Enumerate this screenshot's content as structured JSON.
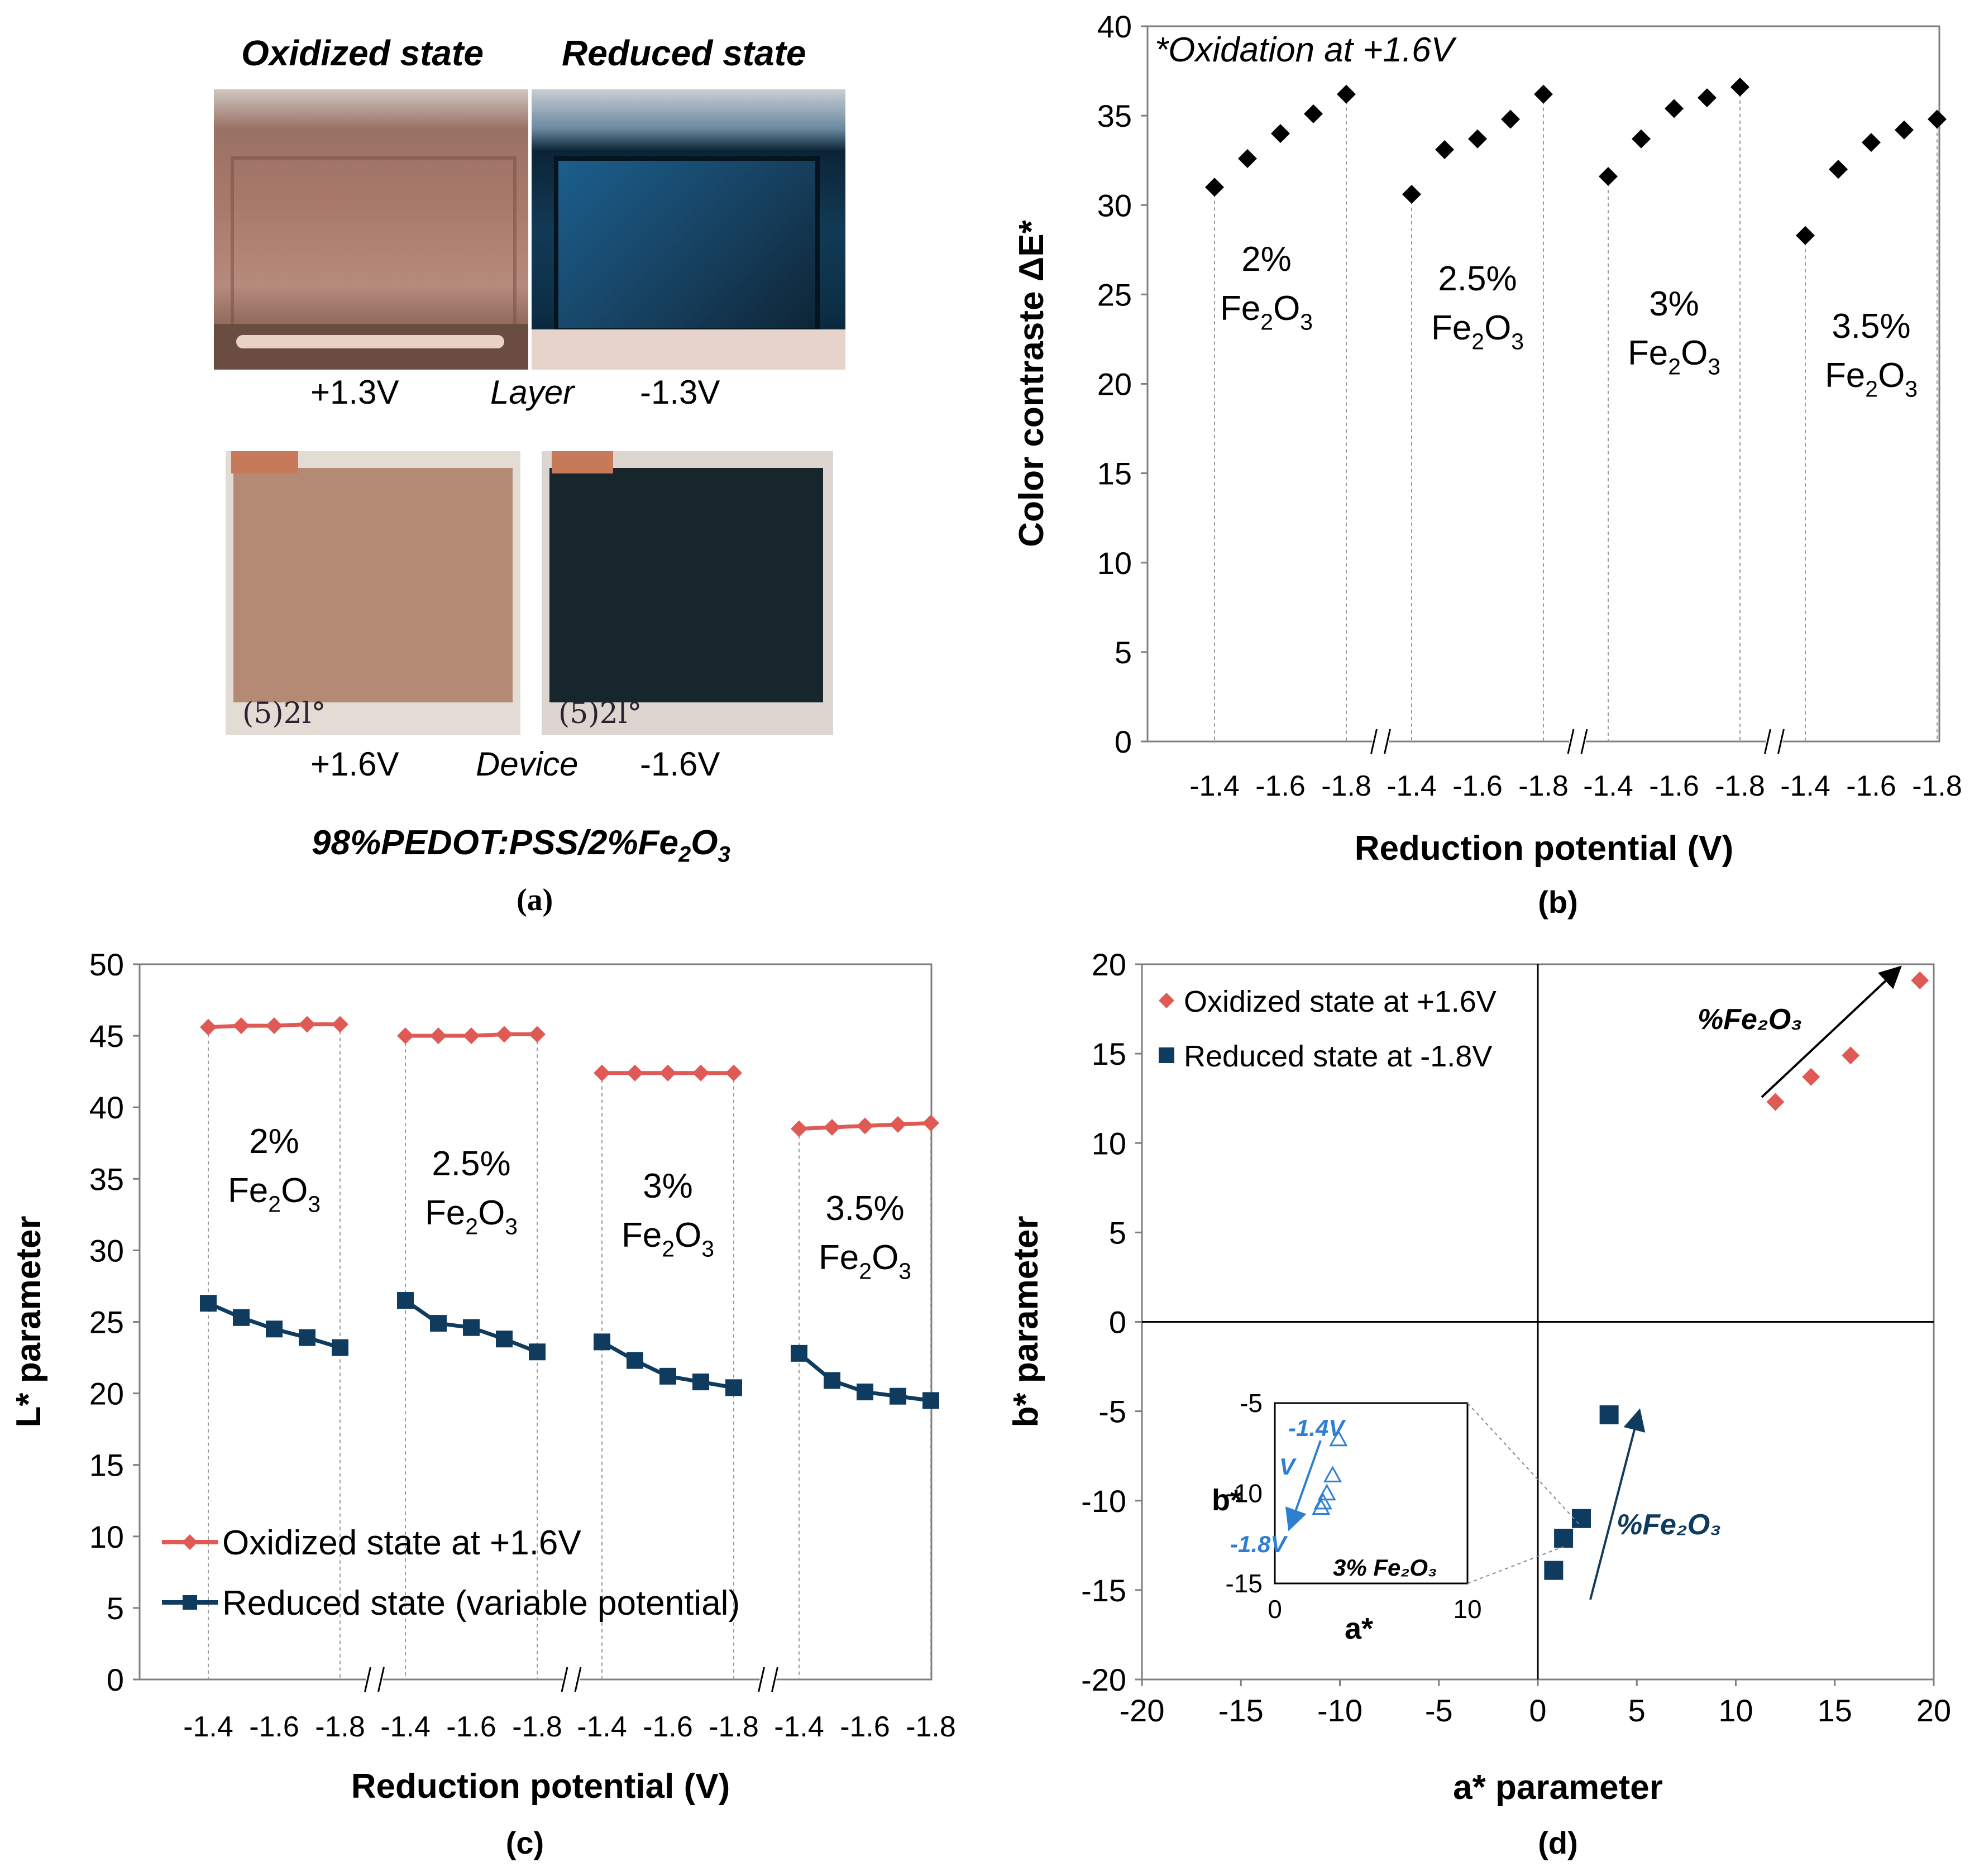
{
  "panel_a": {
    "caption": "(a)",
    "oxidized_title": "Oxidized state",
    "reduced_title": "Reduced state",
    "layer_left_voltage": "+1.3V",
    "layer_label": "Layer",
    "layer_right_voltage": "-1.3V",
    "device_left_voltage": "+1.6V",
    "device_label": "Device",
    "device_right_voltage": "-1.6V",
    "composition_prefix": "98%PEDOT:PSS/2%Fe",
    "composition_sub1": "2",
    "composition_o": "O",
    "composition_sub2": "3",
    "sample_label": "(5)2l°",
    "colors": {
      "oxidized": "#b48a74",
      "reduced": "#16262c",
      "layer_reduced": "#1f5a82",
      "copper": "#c77a5a"
    }
  },
  "chart_data": [
    {
      "id": "b",
      "type": "scatter",
      "caption": "(b)",
      "title": "",
      "annotation": "*Oxidation at +1.6V",
      "xlabel": "Reduction potential (V)",
      "ylabel": "Color contraste ΔE*",
      "ylim": [
        0,
        40
      ],
      "yticks": [
        "0",
        "5",
        "10",
        "15",
        "20",
        "25",
        "30",
        "35",
        "40"
      ],
      "grid": false,
      "marker_color": "#000000",
      "groups": [
        {
          "composition": "2%",
          "formula": [
            "Fe",
            "2",
            "O",
            "3"
          ],
          "x": [
            -1.4,
            -1.5,
            -1.6,
            -1.7,
            -1.8
          ],
          "x_tick_labels": [
            "-1.4",
            "-1.6",
            "-1.8"
          ],
          "values": [
            31.0,
            32.6,
            34.0,
            35.1,
            36.2
          ]
        },
        {
          "composition": "2.5%",
          "formula": [
            "Fe",
            "2",
            "O",
            "3"
          ],
          "x": [
            -1.4,
            -1.5,
            -1.6,
            -1.7,
            -1.8
          ],
          "x_tick_labels": [
            "-1.4",
            "-1.6",
            "-1.8"
          ],
          "values": [
            30.6,
            33.1,
            33.7,
            34.8,
            36.2
          ]
        },
        {
          "composition": "3%",
          "formula": [
            "Fe",
            "2",
            "O",
            "3"
          ],
          "x": [
            -1.4,
            -1.5,
            -1.6,
            -1.7,
            -1.8
          ],
          "x_tick_labels": [
            "-1.4",
            "-1.6",
            "-1.8"
          ],
          "values": [
            31.6,
            33.7,
            35.4,
            36.0,
            36.6
          ]
        },
        {
          "composition": "3.5%",
          "formula": [
            "Fe",
            "2",
            "O",
            "3"
          ],
          "x": [
            -1.4,
            -1.5,
            -1.6,
            -1.7,
            -1.8
          ],
          "x_tick_labels": [
            "-1.4",
            "-1.6",
            "-1.8"
          ],
          "values": [
            28.3,
            32.0,
            33.5,
            34.2,
            34.8
          ]
        }
      ]
    },
    {
      "id": "c",
      "type": "line",
      "caption": "(c)",
      "title": "",
      "xlabel": "Reduction potential (V)",
      "ylabel": "L* parameter",
      "ylim": [
        0,
        50
      ],
      "yticks": [
        "0",
        "5",
        "10",
        "15",
        "20",
        "25",
        "30",
        "35",
        "40",
        "45",
        "50"
      ],
      "grid": false,
      "legend_position": "bottom-left",
      "series": [
        {
          "name": "Oxidized state at +1.6V",
          "color": "#e05a55",
          "marker": "diamond"
        },
        {
          "name": "Reduced state (variable potential)",
          "color": "#0f3c5e",
          "marker": "square"
        }
      ],
      "groups": [
        {
          "composition": "2%",
          "formula": [
            "Fe",
            "2",
            "O",
            "3"
          ],
          "x": [
            -1.4,
            -1.5,
            -1.6,
            -1.7,
            -1.8
          ],
          "x_tick_labels": [
            "-1.4",
            "-1.6",
            "-1.8"
          ],
          "oxidized": [
            45.6,
            45.7,
            45.7,
            45.8,
            45.8
          ],
          "reduced": [
            26.3,
            25.3,
            24.5,
            23.9,
            23.2
          ]
        },
        {
          "composition": "2.5%",
          "formula": [
            "Fe",
            "2",
            "O",
            "3"
          ],
          "x": [
            -1.4,
            -1.5,
            -1.6,
            -1.7,
            -1.8
          ],
          "x_tick_labels": [
            "-1.4",
            "-1.6",
            "-1.8"
          ],
          "oxidized": [
            45.0,
            45.0,
            45.0,
            45.1,
            45.1
          ],
          "reduced": [
            26.5,
            24.9,
            24.6,
            23.8,
            22.9
          ]
        },
        {
          "composition": "3%",
          "formula": [
            "Fe",
            "2",
            "O",
            "3"
          ],
          "x": [
            -1.4,
            -1.5,
            -1.6,
            -1.7,
            -1.8
          ],
          "x_tick_labels": [
            "-1.4",
            "-1.6",
            "-1.8"
          ],
          "oxidized": [
            42.4,
            42.4,
            42.4,
            42.4,
            42.4
          ],
          "reduced": [
            23.6,
            22.3,
            21.2,
            20.8,
            20.4
          ]
        },
        {
          "composition": "3.5%",
          "formula": [
            "Fe",
            "2",
            "O",
            "3"
          ],
          "x": [
            -1.4,
            -1.5,
            -1.6,
            -1.7,
            -1.8
          ],
          "x_tick_labels": [
            "-1.4",
            "-1.6",
            "-1.8"
          ],
          "oxidized": [
            38.5,
            38.6,
            38.7,
            38.8,
            38.9
          ],
          "reduced": [
            22.8,
            20.9,
            20.1,
            19.8,
            19.5
          ]
        }
      ]
    },
    {
      "id": "d",
      "type": "scatter",
      "caption": "(d)",
      "title": "",
      "xlabel": "a* parameter",
      "ylabel": "b* parameter",
      "xlim": [
        -20,
        20
      ],
      "ylim": [
        -20,
        20
      ],
      "xticks": [
        "-20",
        "-15",
        "-10",
        "-5",
        "0",
        "5",
        "10",
        "15",
        "20"
      ],
      "yticks": [
        "-20",
        "-15",
        "-10",
        "-5",
        "0",
        "5",
        "10",
        "15",
        "20"
      ],
      "grid": false,
      "legend_position": "top-left",
      "series": [
        {
          "name": "Oxidized state at +1.6V",
          "color": "#e05a55",
          "marker": "diamond",
          "x": [
            12.0,
            13.8,
            15.8,
            19.3
          ],
          "y": [
            12.3,
            13.7,
            14.9,
            19.1
          ]
        },
        {
          "name": "Reduced state at -1.8V",
          "color": "#0f3c5e",
          "marker": "square",
          "x": [
            0.8,
            1.3,
            2.2,
            3.6
          ],
          "y": [
            -13.9,
            -12.1,
            -11.0,
            -5.2
          ]
        }
      ],
      "arrow_label": "%Fe₂O₃",
      "inset": {
        "xlim": [
          0,
          10
        ],
        "ylim": [
          -15,
          -5
        ],
        "xticks": [
          "0",
          "10"
        ],
        "yticks": [
          "-5",
          "-10",
          "-15"
        ],
        "xlabel": "a*",
        "ylabel": "b*",
        "label": "3% Fe₂O₃",
        "color": "#2f7fd0",
        "points_x": [
          3.3,
          3.0,
          2.7,
          2.5,
          2.4
        ],
        "points_y": [
          -7.0,
          -9.0,
          -10.0,
          -10.5,
          -10.8
        ],
        "arrow_start_label": "-1.4V",
        "arrow_mid_label": "V",
        "arrow_end_label": "-1.8V"
      }
    }
  ]
}
